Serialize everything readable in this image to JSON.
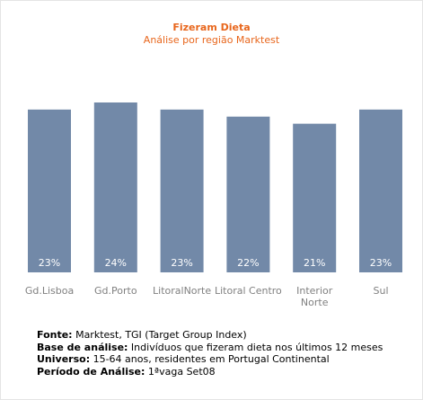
{
  "chart_data": {
    "type": "bar",
    "title": "Fizeram Dieta",
    "subtitle": "Análise por região Marktest",
    "categories": [
      "Gd.Lisboa",
      "Gd.Porto",
      "LitoralNorte",
      "Litoral Centro",
      "Interior Norte",
      "Sul"
    ],
    "values": [
      23,
      24,
      23,
      22,
      21,
      23
    ],
    "value_labels": [
      "23%",
      "24%",
      "23%",
      "22%",
      "21%",
      "23%"
    ],
    "unit": "%",
    "ylim": [
      0,
      24
    ],
    "grid": false,
    "legend": "none"
  },
  "colors": {
    "bar": "#7289a8",
    "title": "#e8661c",
    "axis_label": "#808080",
    "value_label": "#ffffff"
  },
  "notes": {
    "fonte_label": "Fonte:",
    "fonte_value": " Marktest, TGI (Target Group Index)",
    "base_label": "Base de análise:",
    "base_value": " Indivíduos que fizeram dieta nos últimos 12 meses",
    "universo_label": "Universo:",
    "universo_value": " 15-64 anos, residentes em Portugal Continental",
    "periodo_label": "Período de Análise:",
    "periodo_value": " 1ªvaga Set08"
  }
}
